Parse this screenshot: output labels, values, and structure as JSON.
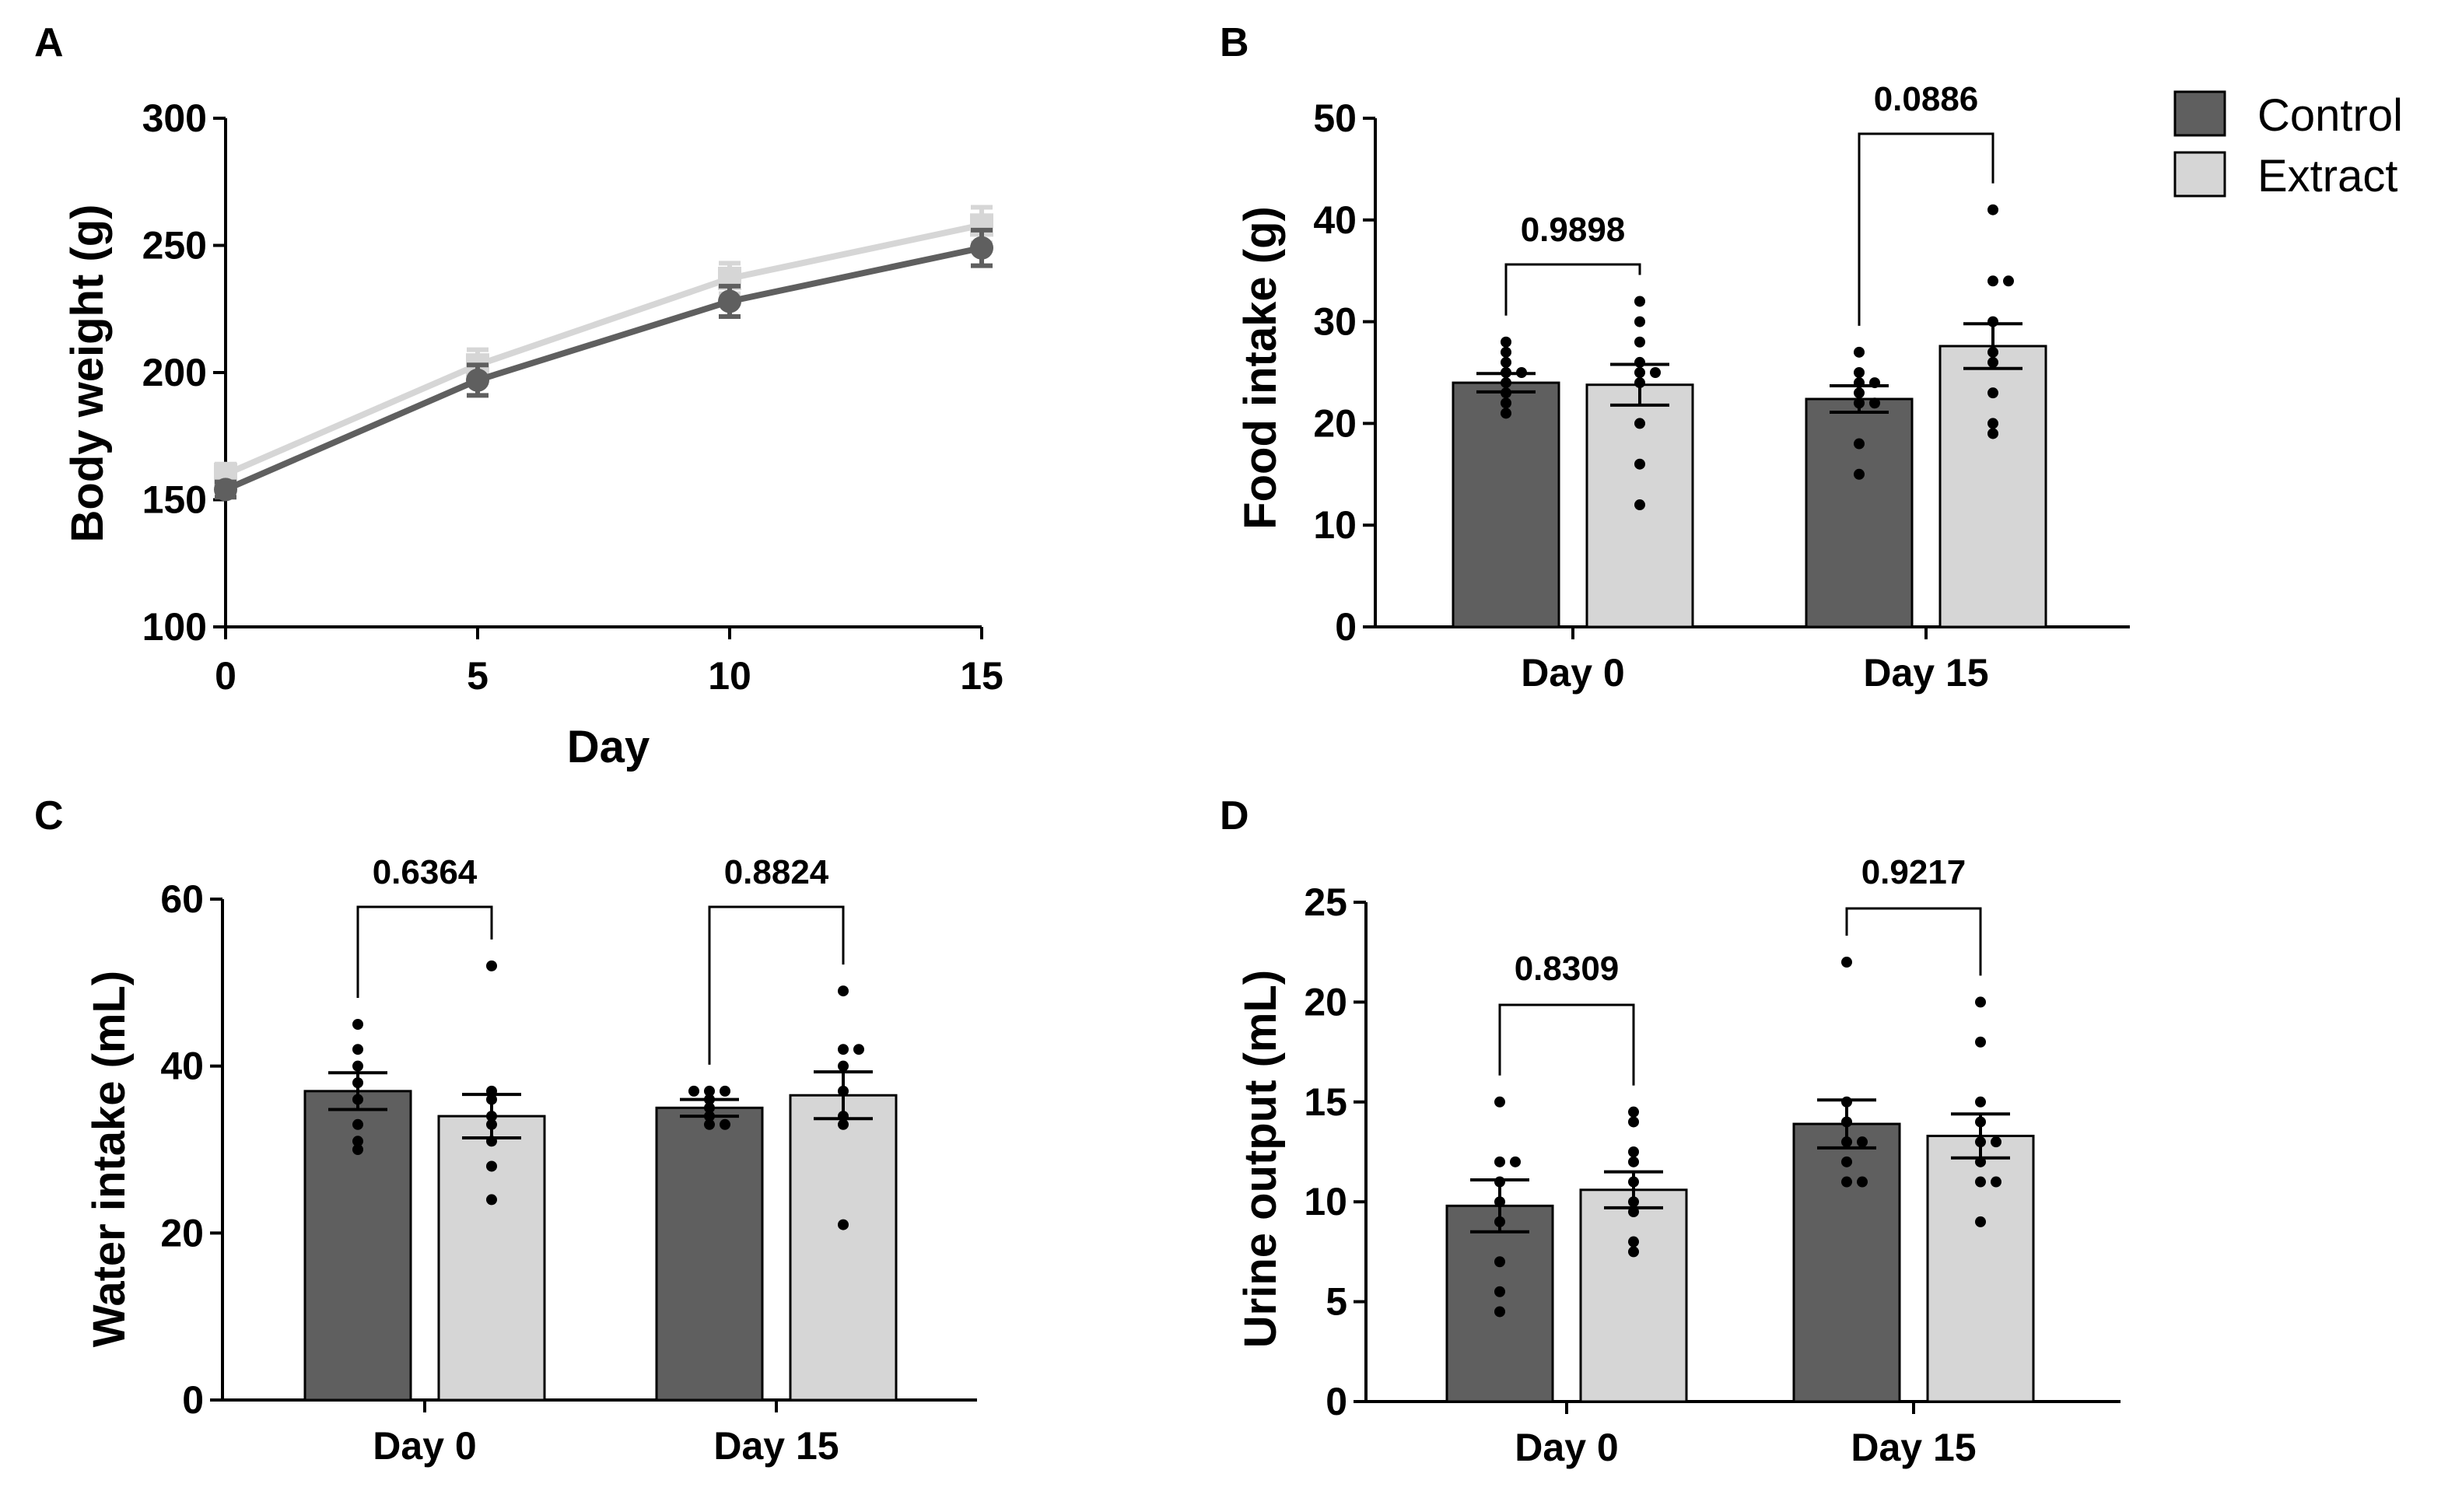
{
  "legend": {
    "items": [
      {
        "label": "Control",
        "color": "#5f5f5f"
      },
      {
        "label": "Extract",
        "color": "#d6d6d6"
      }
    ]
  },
  "chart_data": [
    {
      "id": "A",
      "panel_label": "A",
      "type": "line",
      "xlabel": "Day",
      "ylabel": "Body weight (g)",
      "xlim": [
        0,
        15
      ],
      "ylim": [
        100,
        300
      ],
      "xticks": [
        0,
        5,
        10,
        15
      ],
      "yticks": [
        100,
        150,
        200,
        250,
        300
      ],
      "x": [
        0,
        5,
        10,
        15
      ],
      "series": [
        {
          "name": "Control",
          "color": "#5f5f5f",
          "marker": "circle",
          "values": [
            154,
            197,
            228,
            249
          ],
          "sem": [
            3,
            6,
            6,
            7
          ]
        },
        {
          "name": "Extract",
          "color": "#d6d6d6",
          "marker": "square",
          "values": [
            160,
            203,
            237,
            258
          ],
          "sem": [
            4,
            6,
            6,
            7
          ]
        }
      ]
    },
    {
      "id": "B",
      "panel_label": "B",
      "type": "bar",
      "ylabel": "Food intake (g)",
      "ylim": [
        0,
        50
      ],
      "yticks": [
        0,
        10,
        20,
        30,
        40,
        50
      ],
      "categories": [
        "Day 0",
        "Day 15"
      ],
      "series": [
        {
          "name": "Control",
          "color": "#5f5f5f",
          "values": [
            24.0,
            22.4
          ],
          "sem": [
            0.9,
            1.3
          ],
          "points": [
            [
              28,
              27,
              26,
              25,
              25,
              24,
              23,
              22,
              21
            ],
            [
              27,
              25,
              24,
              24,
              23,
              22,
              22,
              18,
              15
            ]
          ]
        },
        {
          "name": "Extract",
          "color": "#d6d6d6",
          "values": [
            23.8,
            27.6
          ],
          "sem": [
            2.0,
            2.2
          ],
          "points": [
            [
              32,
              30,
              28,
              26,
              25,
              25,
              24,
              20,
              16,
              12
            ],
            [
              41,
              34,
              34,
              30,
              27,
              26,
              23,
              20,
              19
            ]
          ]
        }
      ],
      "comparisons": [
        "0.9898",
        "0.0886"
      ]
    },
    {
      "id": "C",
      "panel_label": "C",
      "type": "bar",
      "ylabel": "Water intake (mL)",
      "ylim": [
        0,
        60
      ],
      "yticks": [
        0,
        20,
        40,
        60
      ],
      "categories": [
        "Day 0",
        "Day 15"
      ],
      "series": [
        {
          "name": "Control",
          "color": "#5f5f5f",
          "values": [
            37,
            35
          ],
          "sem": [
            2.2,
            1.0
          ],
          "points": [
            [
              45,
              42,
              40,
              38,
              36,
              33,
              31,
              30
            ],
            [
              37,
              37,
              37,
              36,
              35,
              34,
              33,
              33
            ]
          ]
        },
        {
          "name": "Extract",
          "color": "#d6d6d6",
          "values": [
            34,
            36.5
          ],
          "sem": [
            2.6,
            2.8
          ],
          "points": [
            [
              52,
              37,
              36,
              34,
              33,
              31,
              28,
              24
            ],
            [
              49,
              42,
              42,
              40,
              37,
              34,
              33,
              21
            ]
          ]
        }
      ],
      "comparisons": [
        "0.6364",
        "0.8824"
      ]
    },
    {
      "id": "D",
      "panel_label": "D",
      "type": "bar",
      "ylabel": "Urine output (mL)",
      "ylim": [
        0,
        25
      ],
      "yticks": [
        0,
        5,
        10,
        15,
        20,
        25
      ],
      "categories": [
        "Day 0",
        "Day 15"
      ],
      "series": [
        {
          "name": "Control",
          "color": "#5f5f5f",
          "values": [
            9.8,
            13.9
          ],
          "sem": [
            1.3,
            1.2
          ],
          "points": [
            [
              15,
              12,
              12,
              11,
              10,
              9,
              7,
              5.5,
              4.5
            ],
            [
              22,
              15,
              14,
              13,
              13,
              12,
              11,
              11
            ]
          ]
        },
        {
          "name": "Extract",
          "color": "#d6d6d6",
          "values": [
            10.6,
            13.3
          ],
          "sem": [
            0.9,
            1.1
          ],
          "points": [
            [
              14.5,
              14,
              12.5,
              12,
              11,
              10,
              9.5,
              8,
              7.5
            ],
            [
              20,
              18,
              15,
              14,
              13,
              13,
              12,
              11,
              11,
              9
            ]
          ]
        }
      ],
      "comparisons": [
        "0.8309",
        "0.9217"
      ]
    }
  ]
}
